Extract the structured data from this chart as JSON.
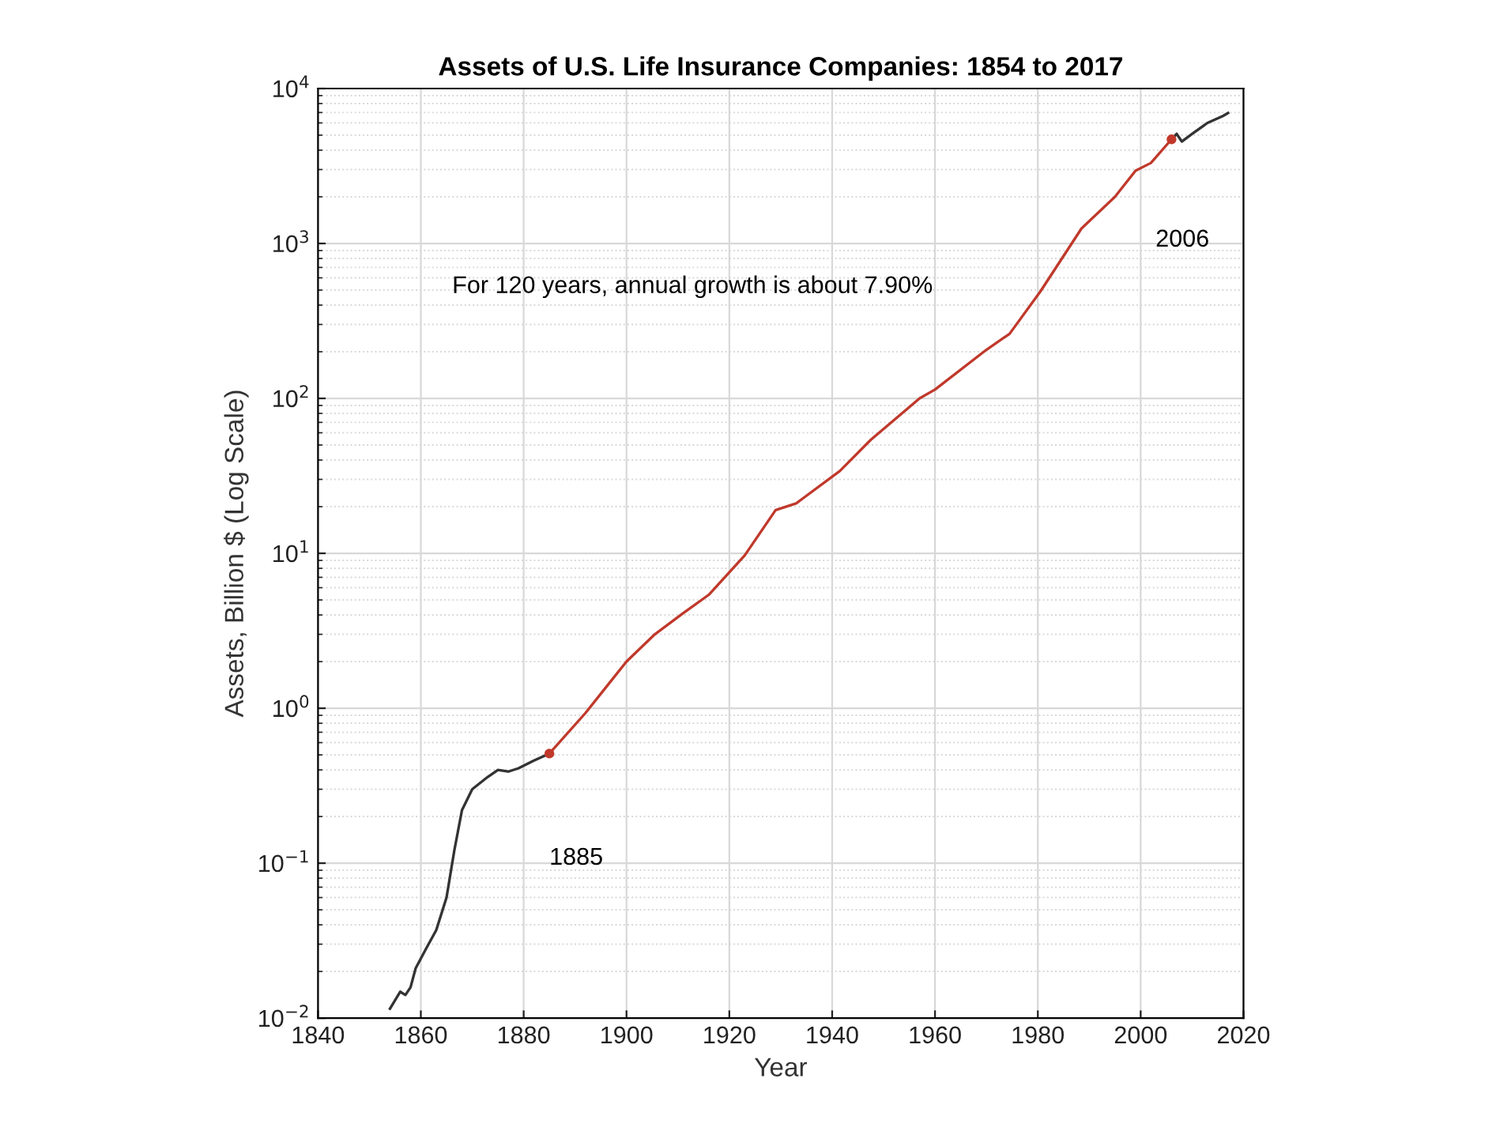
{
  "chart_data": {
    "type": "line",
    "title": "Assets of U.S. Life Insurance Companies: 1854 to 2017",
    "xlabel": "Year",
    "ylabel": "Assets, Billion $ (Log Scale)",
    "series": [
      {
        "color": "#333333",
        "x": [
          1854,
          1856,
          1857,
          1858,
          1859,
          1861,
          1863,
          1865,
          1866.5,
          1868,
          1870,
          1873,
          1875,
          1877,
          1879,
          1882,
          1885
        ],
        "values": [
          0.0115,
          0.0148,
          0.0141,
          0.0158,
          0.021,
          0.028,
          0.037,
          0.06,
          0.12,
          0.22,
          0.3,
          0.36,
          0.4,
          0.39,
          0.41,
          0.46,
          0.51
        ]
      },
      {
        "color": "#c0392b",
        "x": [
          1885,
          1892,
          1900,
          1905.5,
          1911,
          1916,
          1923,
          1929,
          1933,
          1941.5,
          1947.5,
          1957,
          1960,
          1970,
          1974.5,
          1980.5,
          1988.5,
          1995,
          1999,
          2002,
          2006
        ],
        "values": [
          0.51,
          0.93,
          2.0,
          3.0,
          4.1,
          5.4,
          9.7,
          19,
          21,
          34,
          54,
          100,
          114,
          206,
          261,
          490,
          1250,
          2000,
          2950,
          3310,
          4700
        ]
      },
      {
        "color": "#333333",
        "x": [
          2006,
          2007,
          2008,
          2010,
          2013,
          2016,
          2017
        ],
        "values": [
          4700,
          5100,
          4550,
          5100,
          6000,
          6650,
          6950
        ]
      },
      {
        "type": "scatter",
        "color": "#c0392b",
        "x": [
          1885,
          2006
        ],
        "values": [
          0.51,
          4700
        ]
      }
    ],
    "annotations": [
      "For 120 years, annual growth is about 7.90%",
      "1885",
      "2006"
    ],
    "log": "y",
    "xlim": [
      1840,
      2020
    ],
    "ylim": [
      0.01,
      10000
    ],
    "xticks": [
      1840,
      1860,
      1880,
      1900,
      1920,
      1940,
      1960,
      1980,
      2000,
      2020
    ],
    "yticks": [
      {
        "value": 0.01,
        "label": "10$^{−2}$"
      },
      {
        "value": 0.1,
        "label": "10$^{−1}$"
      },
      {
        "value": 1,
        "label": "10$^{0}$"
      },
      {
        "value": 10,
        "label": "10$^{1}$"
      },
      {
        "value": 100,
        "label": "10$^{2}$"
      },
      {
        "value": 1000,
        "label": "10$^{3}$"
      },
      {
        "value": 10000,
        "label": "10$^{4}$"
      }
    ],
    "grid": true
  }
}
